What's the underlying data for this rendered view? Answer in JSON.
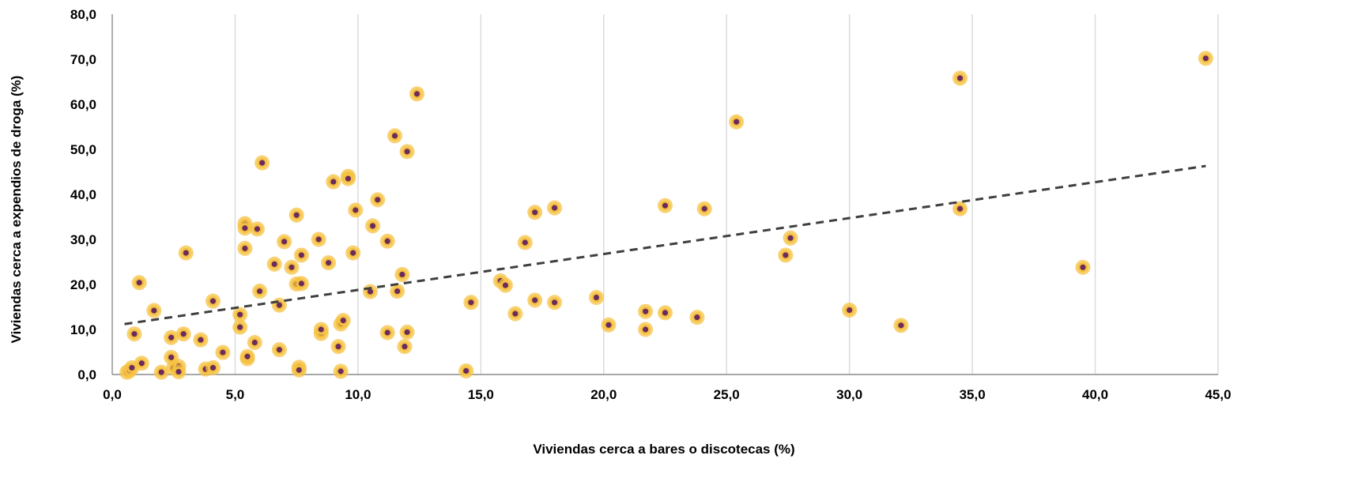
{
  "chart_data": {
    "type": "scatter",
    "title": "",
    "xlabel": "Viviendas cerca a bares o discotecas (%)",
    "ylabel": "Viviendas cerca a expendios de droga (%)",
    "xlim": [
      0,
      45
    ],
    "ylim": [
      0,
      80
    ],
    "x_ticks": [
      "0,0",
      "5,0",
      "10,0",
      "15,0",
      "20,0",
      "25,0",
      "30,0",
      "35,0",
      "40,0",
      "45,0"
    ],
    "y_ticks": [
      "0,0",
      "10,0",
      "20,0",
      "30,0",
      "40,0",
      "50,0",
      "60,0",
      "70,0",
      "80,0"
    ],
    "grid": "vertical",
    "marker_fill": "#6b2c5c",
    "marker_ring": "#f5c242",
    "trendline": {
      "style": "dashed",
      "color": "#3f3f3f",
      "x": [
        0.5,
        44.5
      ],
      "y": [
        11.2,
        46.3
      ]
    },
    "points": [
      [
        0.6,
        0.5
      ],
      [
        0.7,
        0.8
      ],
      [
        0.8,
        1.5
      ],
      [
        0.9,
        9.0
      ],
      [
        1.1,
        20.4
      ],
      [
        1.2,
        2.5
      ],
      [
        1.7,
        14.2
      ],
      [
        2.0,
        0.5
      ],
      [
        2.4,
        8.2
      ],
      [
        2.4,
        3.8
      ],
      [
        2.5,
        1.5
      ],
      [
        2.7,
        1.8
      ],
      [
        2.7,
        0.6
      ],
      [
        2.9,
        9.0
      ],
      [
        3.0,
        27.0
      ],
      [
        3.6,
        7.7
      ],
      [
        3.8,
        1.2
      ],
      [
        4.1,
        16.3
      ],
      [
        4.1,
        1.5
      ],
      [
        4.5,
        4.9
      ],
      [
        5.2,
        13.3
      ],
      [
        5.2,
        10.5
      ],
      [
        5.4,
        28.0
      ],
      [
        5.4,
        33.5
      ],
      [
        5.4,
        32.5
      ],
      [
        5.5,
        3.5
      ],
      [
        5.5,
        4.0
      ],
      [
        5.8,
        7.1
      ],
      [
        5.9,
        32.3
      ],
      [
        6.0,
        18.5
      ],
      [
        6.1,
        47.0
      ],
      [
        6.6,
        24.5
      ],
      [
        6.8,
        5.5
      ],
      [
        6.8,
        15.4
      ],
      [
        7.0,
        29.5
      ],
      [
        7.3,
        23.8
      ],
      [
        7.5,
        20.1
      ],
      [
        7.5,
        35.4
      ],
      [
        7.6,
        1.6
      ],
      [
        7.6,
        1.0
      ],
      [
        7.7,
        26.5
      ],
      [
        7.7,
        20.2
      ],
      [
        8.4,
        30.0
      ],
      [
        8.5,
        9.1
      ],
      [
        8.5,
        10.0
      ],
      [
        8.8,
        24.8
      ],
      [
        9.0,
        42.8
      ],
      [
        9.2,
        6.2
      ],
      [
        9.3,
        0.7
      ],
      [
        9.3,
        11.2
      ],
      [
        9.4,
        12.0
      ],
      [
        9.6,
        44.0
      ],
      [
        9.6,
        43.5
      ],
      [
        9.8,
        27.0
      ],
      [
        9.9,
        36.5
      ],
      [
        10.5,
        18.4
      ],
      [
        10.6,
        33.0
      ],
      [
        10.8,
        38.8
      ],
      [
        11.2,
        29.6
      ],
      [
        11.2,
        9.3
      ],
      [
        11.5,
        53.0
      ],
      [
        11.6,
        18.5
      ],
      [
        11.8,
        22.2
      ],
      [
        11.9,
        6.2
      ],
      [
        12.0,
        9.4
      ],
      [
        12.0,
        49.5
      ],
      [
        12.4,
        62.3
      ],
      [
        14.4,
        0.8
      ],
      [
        14.6,
        16.0
      ],
      [
        15.8,
        20.8
      ],
      [
        16.0,
        19.8
      ],
      [
        16.4,
        13.5
      ],
      [
        16.8,
        29.3
      ],
      [
        17.2,
        36.0
      ],
      [
        17.2,
        16.5
      ],
      [
        18.0,
        37.0
      ],
      [
        18.0,
        16.0
      ],
      [
        19.7,
        17.1
      ],
      [
        20.2,
        11.0
      ],
      [
        21.7,
        14.0
      ],
      [
        21.7,
        10.0
      ],
      [
        22.5,
        37.5
      ],
      [
        22.5,
        13.7
      ],
      [
        23.8,
        12.7
      ],
      [
        24.1,
        36.8
      ],
      [
        25.4,
        56.1
      ],
      [
        27.4,
        26.5
      ],
      [
        27.6,
        30.3
      ],
      [
        30.0,
        14.3
      ],
      [
        32.1,
        10.9
      ],
      [
        34.5,
        65.8
      ],
      [
        34.5,
        36.8
      ],
      [
        39.5,
        23.8
      ],
      [
        44.5,
        70.2
      ]
    ]
  }
}
